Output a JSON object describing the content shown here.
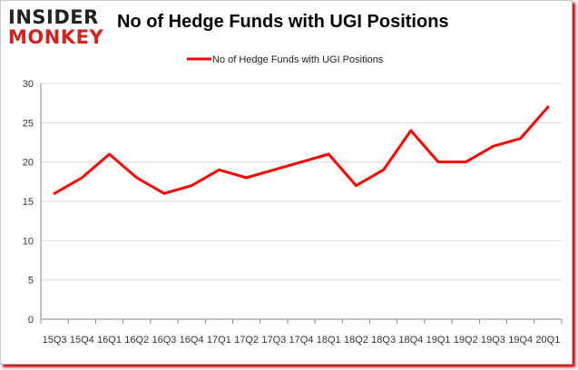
{
  "logo": {
    "line1": "INSIDER",
    "line2": "MONKEY"
  },
  "chart_data": {
    "type": "line",
    "title": "No of Hedge Funds with UGI Positions",
    "categories": [
      "15Q3",
      "15Q4",
      "16Q1",
      "16Q2",
      "16Q3",
      "16Q4",
      "17Q1",
      "17Q2",
      "17Q3",
      "17Q4",
      "18Q1",
      "18Q2",
      "18Q3",
      "18Q4",
      "19Q1",
      "19Q2",
      "19Q3",
      "19Q4",
      "20Q1"
    ],
    "series": [
      {
        "name": "No of Hedge Funds with UGI Positions",
        "color": "#ff0000",
        "values": [
          16,
          18,
          21,
          18,
          16,
          17,
          19,
          18,
          19,
          20,
          21,
          17,
          19,
          24,
          20,
          20,
          22,
          23,
          27
        ]
      }
    ],
    "ylim": [
      0,
      30
    ],
    "yticks": [
      0,
      5,
      10,
      15,
      20,
      25,
      30
    ],
    "xlabel": "",
    "ylabel": "",
    "grid": true,
    "legend_position": "top"
  }
}
